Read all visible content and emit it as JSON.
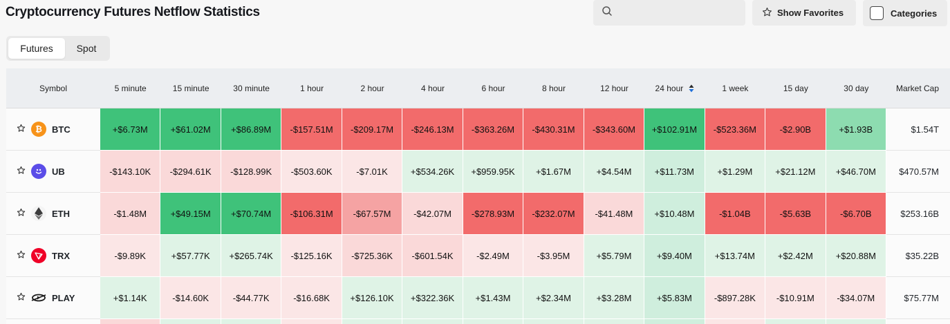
{
  "header": {
    "title": "Cryptocurrency Futures Netflow Statistics",
    "search_placeholder": "",
    "show_favorites_label": "Show Favorites",
    "categories_label": "Categories"
  },
  "tabs": [
    {
      "label": "Futures",
      "active": true
    },
    {
      "label": "Spot",
      "active": false
    }
  ],
  "columns": [
    "Symbol",
    "5 minute",
    "15 minute",
    "30 minute",
    "1 hour",
    "2 hour",
    "4 hour",
    "6 hour",
    "8 hour",
    "12 hour",
    "24 hour",
    "1 week",
    "15 day",
    "30 day",
    "Market Cap"
  ],
  "sorted_column": "24 hour",
  "colors": {
    "strong_green": "#3fc27a",
    "strong_red": "#f26b6b",
    "sort_arrow": "#1e6fd9"
  },
  "rows": [
    {
      "symbol": "BTC",
      "icon": "bitcoin-icon",
      "values": [
        "+$6.73M",
        "+$61.02M",
        "+$86.89M",
        "-$157.51M",
        "-$209.17M",
        "-$246.13M",
        "-$363.26M",
        "-$430.31M",
        "-$343.60M",
        "+$102.91M",
        "-$523.36M",
        "-$2.90B",
        "+$1.93B"
      ],
      "market_cap": "$1.54T"
    },
    {
      "symbol": "UB",
      "icon": "smiley-token-icon",
      "values": [
        "-$143.10K",
        "-$294.61K",
        "-$128.99K",
        "-$503.60K",
        "-$7.01K",
        "+$534.26K",
        "+$959.95K",
        "+$1.67M",
        "+$4.54M",
        "+$11.73M",
        "+$1.29M",
        "+$21.12M",
        "+$46.70M"
      ],
      "market_cap": "$470.57M"
    },
    {
      "symbol": "ETH",
      "icon": "ethereum-icon",
      "values": [
        "-$1.48M",
        "+$49.15M",
        "+$70.74M",
        "-$106.31M",
        "-$67.57M",
        "-$42.07M",
        "-$278.93M",
        "-$232.07M",
        "-$41.48M",
        "+$10.48M",
        "-$1.04B",
        "-$5.63B",
        "-$6.70B"
      ],
      "market_cap": "$253.16B"
    },
    {
      "symbol": "TRX",
      "icon": "tron-icon",
      "values": [
        "-$9.89K",
        "+$57.77K",
        "+$265.74K",
        "-$125.16K",
        "-$725.36K",
        "-$601.54K",
        "-$2.49M",
        "-$3.95M",
        "+$5.79M",
        "+$9.40M",
        "+$13.74M",
        "+$2.42M",
        "+$20.88M"
      ],
      "market_cap": "$35.22B"
    },
    {
      "symbol": "PLAY",
      "icon": "play-token-icon",
      "values": [
        "+$1.14K",
        "-$14.60K",
        "-$44.77K",
        "-$16.68K",
        "+$126.10K",
        "+$322.36K",
        "+$1.43M",
        "+$2.34M",
        "+$3.28M",
        "+$5.83M",
        "-$897.28K",
        "-$10.91M",
        "-$34.07M"
      ],
      "market_cap": "$75.77M"
    }
  ]
}
